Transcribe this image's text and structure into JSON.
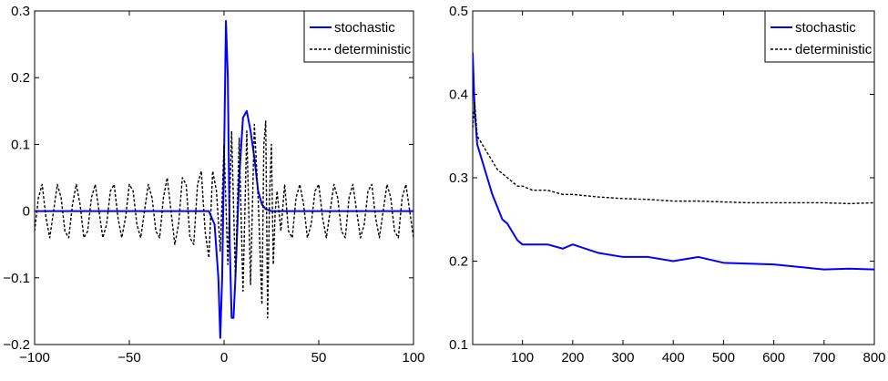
{
  "chart_data": [
    {
      "type": "line",
      "title": "",
      "xlabel": "",
      "ylabel": "",
      "xlim": [
        -100,
        100
      ],
      "ylim": [
        -0.2,
        0.3
      ],
      "xticks": [
        -100,
        -50,
        0,
        50,
        100
      ],
      "xtick_labels": [
        "−100",
        "−50",
        "0",
        "50",
        "100"
      ],
      "yticks": [
        -0.2,
        -0.1,
        0,
        0.1,
        0.2,
        0.3
      ],
      "ytick_labels": [
        "−0.2",
        "−0.1",
        "0",
        "0.1",
        "0.2",
        "0.3"
      ],
      "grid": false,
      "legend_position": "top-right",
      "series": [
        {
          "name": "stochastic",
          "color": "#0000ff",
          "style": "solid",
          "x": [
            -100,
            -8,
            -5,
            -3,
            -2,
            -1,
            0,
            1,
            2,
            3,
            4,
            5,
            6,
            8,
            10,
            12,
            14,
            16,
            18,
            20,
            22,
            25,
            30,
            100
          ],
          "y": [
            0,
            0,
            -0.02,
            -0.1,
            -0.19,
            -0.1,
            0.08,
            0.285,
            0.2,
            -0.05,
            -0.16,
            -0.16,
            -0.1,
            0.05,
            0.14,
            0.15,
            0.12,
            0.08,
            0.03,
            0.01,
            0.003,
            0,
            0,
            0
          ]
        },
        {
          "name": "deterministic",
          "color": "#000000",
          "style": "dashed",
          "x": [
            -100,
            -98,
            -96,
            -94,
            -92,
            -90,
            -88,
            -86,
            -84,
            -82,
            -80,
            -78,
            -76,
            -74,
            -72,
            -70,
            -68,
            -66,
            -64,
            -62,
            -60,
            -58,
            -56,
            -54,
            -52,
            -50,
            -48,
            -46,
            -44,
            -42,
            -40,
            -38,
            -36,
            -34,
            -32,
            -30,
            -28,
            -26,
            -24,
            -22,
            -20,
            -18,
            -16,
            -14,
            -12,
            -10,
            -8,
            -6,
            -4,
            -2,
            0,
            2,
            4,
            6,
            8,
            10,
            12,
            14,
            16,
            18,
            20,
            21,
            22,
            23,
            24,
            25,
            26,
            27,
            28,
            30,
            32,
            34,
            36,
            38,
            40,
            42,
            44,
            46,
            48,
            50,
            52,
            54,
            56,
            58,
            60,
            62,
            64,
            66,
            68,
            70,
            72,
            74,
            76,
            78,
            80,
            82,
            84,
            86,
            88,
            90,
            92,
            94,
            96,
            98,
            100
          ],
          "y": [
            -0.03,
            0.02,
            0.04,
            -0.01,
            -0.04,
            0.0,
            0.04,
            0.02,
            -0.03,
            -0.04,
            0.01,
            0.04,
            0.01,
            -0.04,
            -0.03,
            0.02,
            0.04,
            0.0,
            -0.04,
            -0.02,
            0.03,
            0.04,
            -0.01,
            -0.04,
            -0.01,
            0.04,
            0.03,
            -0.02,
            -0.04,
            0.0,
            0.04,
            0.02,
            -0.03,
            -0.04,
            0.02,
            0.05,
            0.0,
            -0.05,
            -0.02,
            0.05,
            0.04,
            -0.04,
            -0.05,
            0.04,
            0.06,
            -0.03,
            -0.07,
            0.06,
            0.03,
            -0.06,
            0.1,
            -0.08,
            0.12,
            -0.1,
            0.11,
            -0.12,
            0.12,
            -0.11,
            0.13,
            0.02,
            -0.14,
            0.1,
            0.135,
            -0.16,
            0.02,
            0.1,
            -0.08,
            0.0,
            0.03,
            -0.03,
            0.04,
            -0.03,
            -0.04,
            0.02,
            0.04,
            0.01,
            -0.04,
            -0.02,
            0.03,
            0.04,
            -0.01,
            -0.04,
            0.0,
            0.04,
            0.02,
            -0.03,
            -0.04,
            0.02,
            0.04,
            0.0,
            -0.04,
            -0.02,
            0.03,
            0.04,
            -0.01,
            -0.04,
            0.0,
            0.04,
            0.02,
            -0.03,
            -0.04,
            0.02,
            0.04,
            0.0,
            -0.04
          ]
        }
      ]
    },
    {
      "type": "line",
      "title": "",
      "xlabel": "",
      "ylabel": "",
      "xlim": [
        1,
        800
      ],
      "ylim": [
        0.1,
        0.5
      ],
      "xticks": [
        100,
        200,
        300,
        400,
        500,
        600,
        700,
        800
      ],
      "xtick_labels": [
        "100",
        "200",
        "300",
        "400",
        "500",
        "600",
        "700",
        "800"
      ],
      "yticks": [
        0.1,
        0.2,
        0.3,
        0.4,
        0.5
      ],
      "ytick_labels": [
        "0.1",
        "0.2",
        "0.3",
        "0.4",
        "0.5"
      ],
      "grid": false,
      "legend_position": "top-right",
      "series": [
        {
          "name": "stochastic",
          "color": "#0000ff",
          "style": "solid",
          "x": [
            1,
            5,
            10,
            20,
            30,
            40,
            50,
            60,
            70,
            80,
            90,
            100,
            120,
            150,
            180,
            200,
            250,
            300,
            350,
            400,
            450,
            500,
            550,
            600,
            650,
            700,
            750,
            800
          ],
          "y": [
            0.45,
            0.38,
            0.34,
            0.32,
            0.3,
            0.28,
            0.265,
            0.25,
            0.245,
            0.235,
            0.225,
            0.22,
            0.22,
            0.22,
            0.215,
            0.22,
            0.21,
            0.205,
            0.205,
            0.2,
            0.205,
            0.198,
            0.197,
            0.196,
            0.193,
            0.19,
            0.191,
            0.19
          ]
        },
        {
          "name": "deterministic",
          "color": "#000000",
          "style": "dashed",
          "x": [
            1,
            5,
            10,
            20,
            30,
            40,
            50,
            60,
            70,
            80,
            90,
            100,
            120,
            150,
            180,
            200,
            250,
            300,
            350,
            400,
            450,
            500,
            550,
            600,
            650,
            700,
            750,
            800
          ],
          "y": [
            0.36,
            0.39,
            0.35,
            0.34,
            0.33,
            0.32,
            0.31,
            0.305,
            0.3,
            0.295,
            0.29,
            0.29,
            0.285,
            0.285,
            0.28,
            0.28,
            0.277,
            0.275,
            0.274,
            0.272,
            0.272,
            0.271,
            0.27,
            0.27,
            0.27,
            0.27,
            0.269,
            0.27
          ]
        }
      ]
    }
  ]
}
